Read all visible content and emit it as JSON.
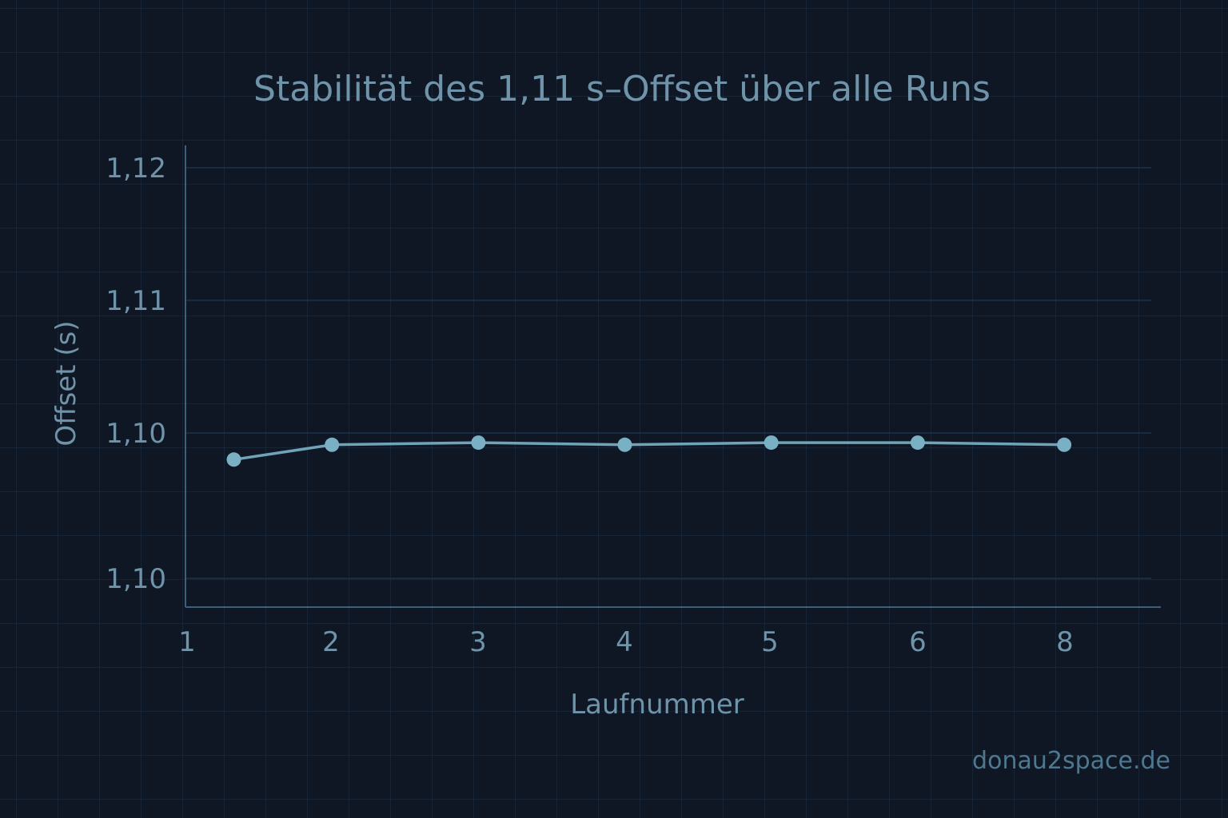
{
  "colors": {
    "background": "#0f1724",
    "grid": "#1d3246",
    "axis": "#3d5f7a",
    "line": "#6fa3b8",
    "marker": "#7ab0c4",
    "text": "#6f93a8",
    "watermark": "#4e7890"
  },
  "watermark": "donau2space.de",
  "chart_data": {
    "type": "line",
    "title": "Stabilität des 1,11 s–Offset über alle Runs",
    "xlabel": "Laufnummer",
    "ylabel": "Offset (s)",
    "x_tick_labels": [
      "1",
      "2",
      "3",
      "4",
      "5",
      "6",
      "8"
    ],
    "y_tick_labels": [
      "1,12",
      "1,11",
      "1,10",
      "1,10"
    ],
    "grid": true,
    "legend": "none",
    "series": [
      {
        "x": [
          1.33,
          2,
          3,
          4,
          5,
          6,
          7
        ],
        "values": [
          1.1057,
          1.1064,
          1.1065,
          1.1064,
          1.1065,
          1.1065,
          1.1064
        ]
      }
    ],
    "xlim": [
      1,
      7.66
    ],
    "ylim": [
      1.0987,
      1.1206
    ]
  }
}
